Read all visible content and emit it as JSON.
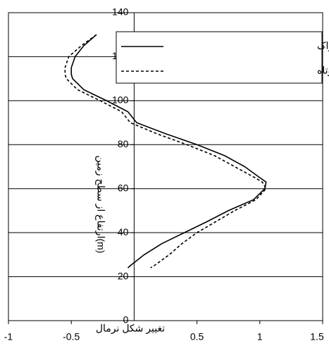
{
  "chart_data": {
    "type": "line",
    "x_label": "تغییر شکل نرمال",
    "y_label": "ارتفاع از سطح زمین(m)",
    "heights": [
      130,
      125,
      120,
      115,
      112,
      110,
      105,
      100,
      95,
      90,
      85,
      80,
      75,
      70,
      65,
      63,
      60,
      55,
      50,
      45,
      40,
      35,
      30,
      25,
      24
    ],
    "series": [
      {
        "name": "برج خنک کننده شازند اراک",
        "color": "#000000",
        "dash": "solid",
        "values": [
          -0.3,
          -0.4,
          -0.47,
          -0.5,
          -0.5,
          -0.49,
          -0.4,
          -0.22,
          -0.05,
          0.02,
          0.25,
          0.5,
          0.72,
          0.88,
          1.0,
          1.05,
          1.04,
          0.95,
          0.75,
          0.58,
          0.4,
          0.22,
          0.08,
          -0.03,
          -0.05
        ]
      },
      {
        "name": "برج خنک کننده  با ستونهای کوتاه",
        "color": "#000000",
        "dash": "dashed",
        "values": [
          -0.3,
          -0.42,
          -0.52,
          -0.55,
          -0.55,
          -0.54,
          -0.45,
          -0.27,
          -0.1,
          -0.03,
          0.18,
          0.42,
          0.64,
          0.8,
          0.96,
          1.02,
          1.05,
          0.97,
          0.8,
          0.65,
          0.5,
          0.38,
          0.28,
          0.16,
          0.13
        ]
      }
    ],
    "xlim": [
      -1,
      1.5
    ],
    "xticks": [
      -1,
      -0.5,
      0.5,
      1,
      1.5
    ],
    "ylim": [
      0,
      140
    ],
    "yticks": [
      0,
      20,
      40,
      60,
      80,
      100,
      120,
      140
    ],
    "grid": true
  }
}
